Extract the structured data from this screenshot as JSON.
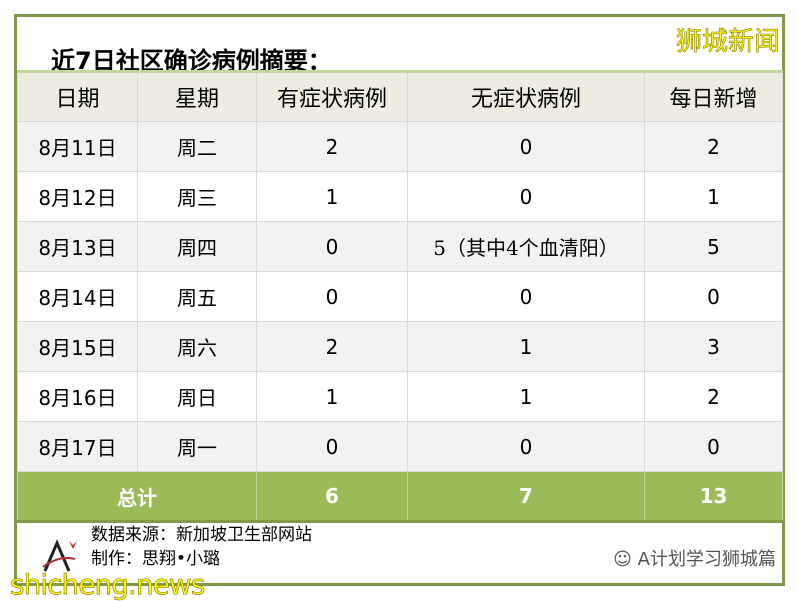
{
  "title": "近7日社区确诊病例摘要：",
  "brand": "狮城新闻",
  "headers": [
    "日期",
    "星期",
    "有症状病例",
    "无症状病例",
    "每日新增"
  ],
  "rows": [
    [
      "8月11日",
      "周二",
      "2",
      "0",
      "2"
    ],
    [
      "8月12日",
      "周三",
      "1",
      "0",
      "1"
    ],
    [
      "8月13日",
      "周四",
      "0",
      "5（其中4个血清阳）",
      "5"
    ],
    [
      "8月14日",
      "周五",
      "0",
      "0",
      "0"
    ],
    [
      "8月15日",
      "周六",
      "2",
      "1",
      "3"
    ],
    [
      "8月16日",
      "周日",
      "1",
      "1",
      "2"
    ],
    [
      "8月17日",
      "周一",
      "0",
      "0",
      "0"
    ]
  ],
  "total": [
    "总计",
    "6",
    "7",
    "13"
  ],
  "source": "数据来源：新加坡卫生部网站",
  "author": "制作：思翔•小璐",
  "wechat": "A计划学习狮城篇",
  "watermark": "shicheng.news",
  "colors": {
    "frame": "#7f9a48",
    "total_bg": "#9bbb59",
    "header_bg": "#eeece1"
  }
}
